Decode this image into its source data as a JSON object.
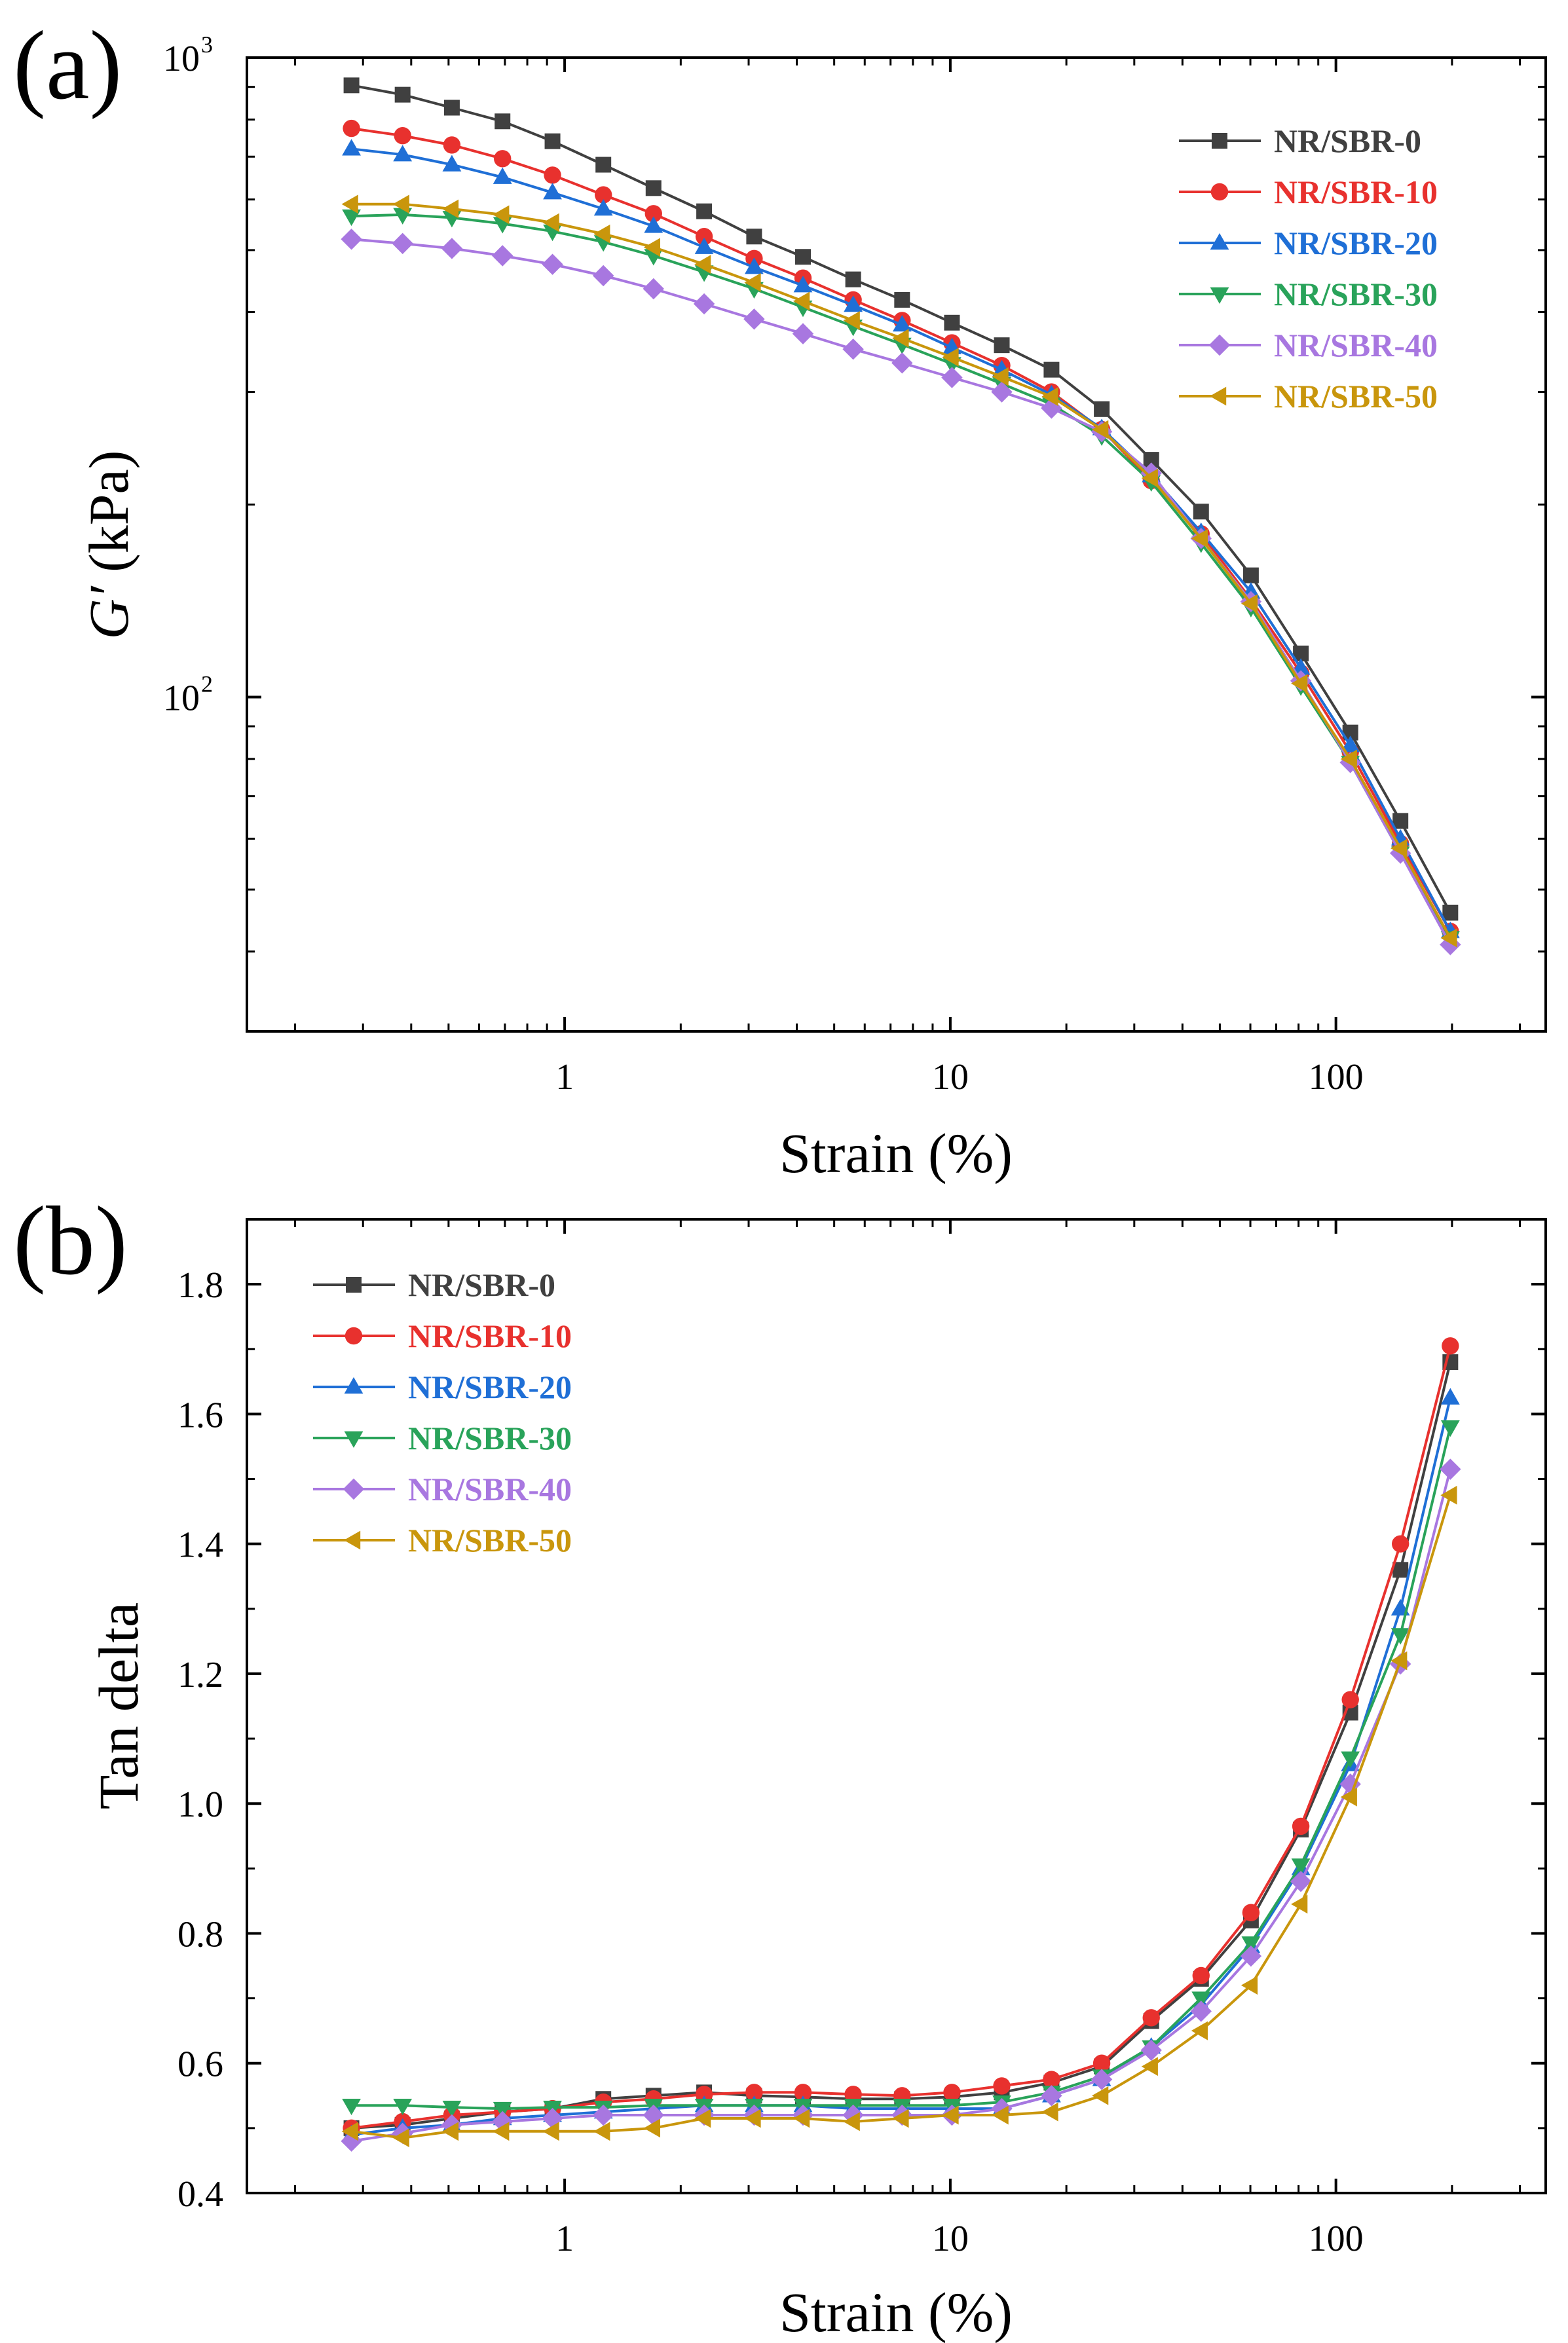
{
  "figure": {
    "panels": [
      {
        "label": "(a)"
      },
      {
        "label": "(b)"
      }
    ]
  },
  "series_styles": [
    {
      "name": "NR/SBR-0",
      "color": "#404040",
      "marker": "square"
    },
    {
      "name": "NR/SBR-10",
      "color": "#e8312e",
      "marker": "circle"
    },
    {
      "name": "NR/SBR-20",
      "color": "#1f6fd6",
      "marker": "triangle-up"
    },
    {
      "name": "NR/SBR-30",
      "color": "#29a35a",
      "marker": "triangle-down"
    },
    {
      "name": "NR/SBR-40",
      "color": "#a877e0",
      "marker": "diamond"
    },
    {
      "name": "NR/SBR-50",
      "color": "#c9960c",
      "marker": "triangle-left"
    }
  ],
  "chart_data": [
    {
      "type": "line",
      "panel": "(a)",
      "title": "",
      "xlabel": "Strain (%)",
      "ylabel_italic": "G′",
      "ylabel_rest": " (kPa)",
      "xscale": "log",
      "yscale": "log",
      "xlim": [
        0.15,
        350
      ],
      "ylim": [
        30,
        1000
      ],
      "xticks": [
        {
          "value": 1,
          "label": "1"
        },
        {
          "value": 10,
          "label": "10"
        },
        {
          "value": 100,
          "label": "100"
        }
      ],
      "yticks": [
        {
          "value": 100,
          "base": "10",
          "exp": "2"
        },
        {
          "value": 1000,
          "base": "10",
          "exp": "3"
        }
      ],
      "legend_position": "top-right",
      "x": [
        0.28,
        0.38,
        0.51,
        0.69,
        0.93,
        1.26,
        1.7,
        2.3,
        3.1,
        4.15,
        5.6,
        7.5,
        10.1,
        13.6,
        18.3,
        24.7,
        33.2,
        44.7,
        60.2,
        81.1,
        109,
        147,
        198
      ],
      "series": [
        {
          "name": "NR/SBR-0",
          "values": [
            905,
            875,
            835,
            795,
            740,
            680,
            625,
            575,
            525,
            488,
            450,
            418,
            385,
            355,
            325,
            282,
            235,
            195,
            155,
            117,
            88,
            64,
            46
          ]
        },
        {
          "name": "NR/SBR-10",
          "values": [
            775,
            755,
            730,
            695,
            655,
            610,
            570,
            525,
            485,
            452,
            418,
            388,
            358,
            330,
            300,
            262,
            218,
            180,
            142,
            109,
            82,
            59,
            43
          ]
        },
        {
          "name": "NR/SBR-20",
          "values": [
            720,
            705,
            680,
            650,
            615,
            580,
            545,
            505,
            470,
            440,
            410,
            382,
            352,
            325,
            297,
            263,
            222,
            181,
            146,
            111,
            84,
            60,
            43
          ]
        },
        {
          "name": "NR/SBR-30",
          "values": [
            565,
            568,
            562,
            550,
            535,
            515,
            490,
            462,
            435,
            407,
            380,
            356,
            332,
            309,
            287,
            256,
            217,
            174,
            138,
            104,
            79,
            57,
            42
          ]
        },
        {
          "name": "NR/SBR-40",
          "values": [
            520,
            512,
            503,
            490,
            475,
            456,
            435,
            412,
            390,
            370,
            350,
            333,
            316,
            300,
            283,
            260,
            224,
            177,
            141,
            106,
            79,
            57,
            41
          ]
        },
        {
          "name": "NR/SBR-50",
          "values": [
            590,
            590,
            580,
            568,
            552,
            530,
            505,
            475,
            445,
            416,
            388,
            364,
            340,
            317,
            295,
            262,
            220,
            177,
            140,
            105,
            80,
            58,
            42
          ]
        }
      ]
    },
    {
      "type": "line",
      "panel": "(b)",
      "title": "",
      "xlabel": "Strain (%)",
      "ylabel": "Tan delta",
      "xscale": "log",
      "yscale": "linear",
      "xlim": [
        0.15,
        350
      ],
      "ylim": [
        0.4,
        1.9
      ],
      "xticks": [
        {
          "value": 1,
          "label": "1"
        },
        {
          "value": 10,
          "label": "10"
        },
        {
          "value": 100,
          "label": "100"
        }
      ],
      "yticks": [
        {
          "value": 0.4,
          "label": "0.4"
        },
        {
          "value": 0.6,
          "label": "0.6"
        },
        {
          "value": 0.8,
          "label": "0.8"
        },
        {
          "value": 1.0,
          "label": "1.0"
        },
        {
          "value": 1.2,
          "label": "1.2"
        },
        {
          "value": 1.4,
          "label": "1.4"
        },
        {
          "value": 1.6,
          "label": "1.6"
        },
        {
          "value": 1.8,
          "label": "1.8"
        }
      ],
      "legend_position": "top-left",
      "x": [
        0.28,
        0.38,
        0.51,
        0.69,
        0.93,
        1.26,
        1.7,
        2.3,
        3.1,
        4.15,
        5.6,
        7.5,
        10.1,
        13.6,
        18.3,
        24.7,
        33.2,
        44.7,
        60.2,
        81.1,
        109,
        147,
        198
      ],
      "series": [
        {
          "name": "NR/SBR-0",
          "values": [
            0.5,
            0.505,
            0.515,
            0.525,
            0.53,
            0.545,
            0.55,
            0.555,
            0.55,
            0.548,
            0.545,
            0.545,
            0.548,
            0.555,
            0.57,
            0.595,
            0.665,
            0.73,
            0.82,
            0.96,
            1.14,
            1.36,
            1.68
          ]
        },
        {
          "name": "NR/SBR-10",
          "values": [
            0.5,
            0.51,
            0.52,
            0.525,
            0.53,
            0.54,
            0.545,
            0.552,
            0.555,
            0.555,
            0.552,
            0.55,
            0.555,
            0.565,
            0.575,
            0.6,
            0.67,
            0.735,
            0.832,
            0.965,
            1.16,
            1.4,
            1.705
          ]
        },
        {
          "name": "NR/SBR-20",
          "values": [
            0.49,
            0.5,
            0.505,
            0.515,
            0.52,
            0.525,
            0.53,
            0.535,
            0.535,
            0.535,
            0.53,
            0.53,
            0.53,
            0.53,
            0.55,
            0.575,
            0.625,
            0.69,
            0.78,
            0.9,
            1.06,
            1.3,
            1.625
          ]
        },
        {
          "name": "NR/SBR-30",
          "values": [
            0.535,
            0.535,
            0.532,
            0.53,
            0.532,
            0.532,
            0.535,
            0.535,
            0.535,
            0.535,
            0.535,
            0.535,
            0.535,
            0.54,
            0.555,
            0.58,
            0.625,
            0.7,
            0.785,
            0.905,
            1.07,
            1.26,
            1.58
          ]
        },
        {
          "name": "NR/SBR-40",
          "values": [
            0.48,
            0.492,
            0.505,
            0.51,
            0.515,
            0.52,
            0.52,
            0.52,
            0.52,
            0.52,
            0.52,
            0.52,
            0.52,
            0.53,
            0.55,
            0.575,
            0.62,
            0.68,
            0.765,
            0.88,
            1.03,
            1.215,
            1.515
          ]
        },
        {
          "name": "NR/SBR-50",
          "values": [
            0.495,
            0.485,
            0.495,
            0.495,
            0.495,
            0.495,
            0.5,
            0.515,
            0.515,
            0.515,
            0.51,
            0.515,
            0.52,
            0.52,
            0.525,
            0.55,
            0.595,
            0.65,
            0.72,
            0.845,
            1.01,
            1.22,
            1.475
          ]
        }
      ]
    }
  ]
}
